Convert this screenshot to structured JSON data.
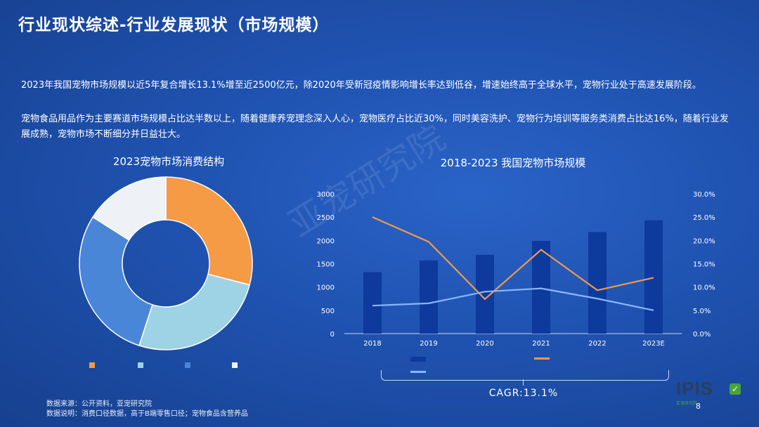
{
  "title": "行业现状综述-行业发展现状（市场规模）",
  "paragraph1": "2023年我国宠物市场规模以近5年复合增长13.1%增至近2500亿元，除2020年受新冠疫情影响增长率达到低谷，增速始终高于全球水平，宠物行业处于高速发展阶段。",
  "paragraph2": "宠物食品用品作为主要赛道市场规模占比达半数以上，随着健康养宠理念深入人心，宠物医疗占比近30%，同时美容洗护、宠物行为培训等服务类消费占比达16%，随着行业发展成熟，宠物市场不断细分并日益壮大。",
  "watermark": "亚宠研究院",
  "chart_data": [
    {
      "type": "pie",
      "title": "2023宠物市场消费结构",
      "labels": [
        "",
        "",
        "",
        ""
      ],
      "values": [
        29,
        26,
        29,
        16
      ],
      "colors": [
        "#f59a45",
        "#9ed3e6",
        "#4a86d8",
        "#eef1f6"
      ]
    },
    {
      "type": "bar",
      "title": "2018-2023 我国宠物市场规模",
      "categories": [
        "2018",
        "2019",
        "2020",
        "2021",
        "2022",
        "2023E"
      ],
      "ylim_left": [
        0,
        3000
      ],
      "yticks_left": [
        "0",
        "500",
        "1000",
        "1500",
        "2000",
        "2500",
        "3000"
      ],
      "ylim_right": [
        0,
        30
      ],
      "yticks_right": [
        "0.0%",
        "5.0%",
        "10.0%",
        "15.0%",
        "20.0%",
        "25.0%",
        "30.0%"
      ],
      "series": [
        {
          "kind": "bar",
          "axis": "left",
          "values": [
            1320,
            1570,
            1690,
            1990,
            2180,
            2430
          ],
          "color": "#0d3a9c"
        },
        {
          "kind": "line",
          "axis": "right",
          "values": [
            25.0,
            19.7,
            7.4,
            18.0,
            9.3,
            12.0
          ],
          "color": "#f0994a"
        },
        {
          "kind": "line",
          "axis": "right",
          "values": [
            6.0,
            6.5,
            9.0,
            9.7,
            7.5,
            5.0
          ],
          "color": "#8bb6ff"
        }
      ],
      "annotation": "CAGR:13.1%"
    }
  ],
  "footnote": {
    "source": "数据来源：公开资料，亚宠研究院",
    "note": "数据说明：消费口径数据，高于B端零售口径；宠物食品含营养品"
  },
  "logo": {
    "text": "IPIS",
    "sub": "亚宠研究院"
  },
  "page_number": "8"
}
